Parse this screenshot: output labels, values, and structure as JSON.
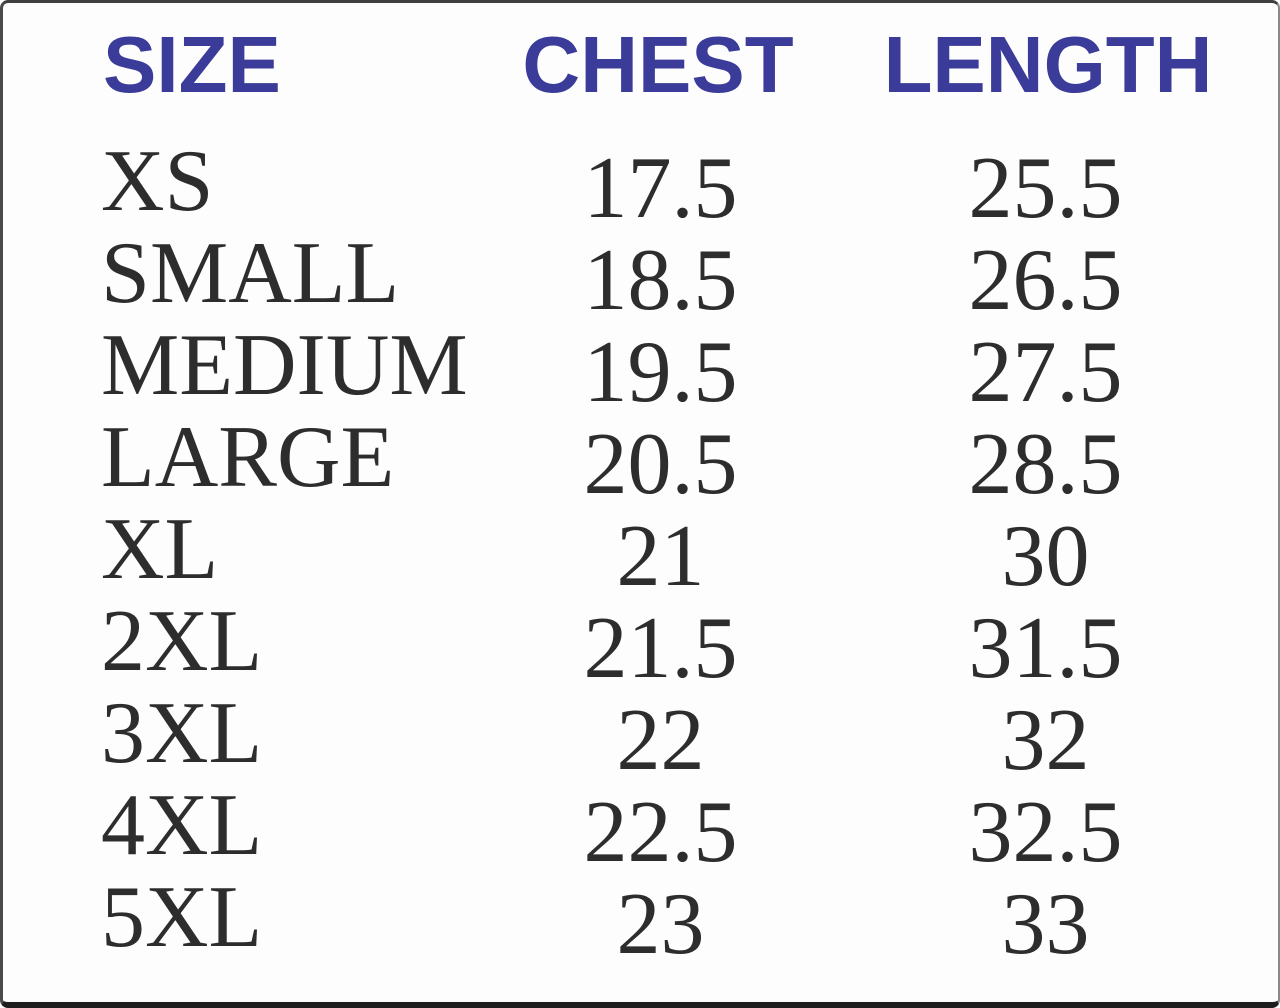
{
  "colors": {
    "header_text": "#3b3b9a",
    "body_text": "#2d2d2d",
    "border_dark": "#1e1e1e",
    "background": "#fdfdfd"
  },
  "table": {
    "headers": [
      {
        "id": "size",
        "label": "SIZE"
      },
      {
        "id": "chest",
        "label": "CHEST"
      },
      {
        "id": "length",
        "label": "LENGTH"
      }
    ],
    "rows": [
      {
        "size": "XS",
        "chest": "17.5",
        "length": "25.5"
      },
      {
        "size": "SMALL",
        "chest": "18.5",
        "length": "26.5"
      },
      {
        "size": "MEDIUM",
        "chest": "19.5",
        "length": "27.5"
      },
      {
        "size": "LARGE",
        "chest": "20.5",
        "length": "28.5"
      },
      {
        "size": "XL",
        "chest": "21",
        "length": "30"
      },
      {
        "size": "2XL",
        "chest": "21.5",
        "length": "31.5"
      },
      {
        "size": "3XL",
        "chest": "22",
        "length": "32"
      },
      {
        "size": "4XL",
        "chest": "22.5",
        "length": "32.5"
      },
      {
        "size": "5XL",
        "chest": "23",
        "length": "33"
      }
    ]
  },
  "chart_data": {
    "type": "table",
    "columns": [
      "SIZE",
      "CHEST",
      "LENGTH"
    ],
    "rows": [
      [
        "XS",
        17.5,
        25.5
      ],
      [
        "SMALL",
        18.5,
        26.5
      ],
      [
        "MEDIUM",
        19.5,
        27.5
      ],
      [
        "LARGE",
        20.5,
        28.5
      ],
      [
        "XL",
        21,
        30
      ],
      [
        "2XL",
        21.5,
        31.5
      ],
      [
        "3XL",
        22,
        32
      ],
      [
        "4XL",
        22.5,
        32.5
      ],
      [
        "5XL",
        23,
        33
      ]
    ]
  }
}
